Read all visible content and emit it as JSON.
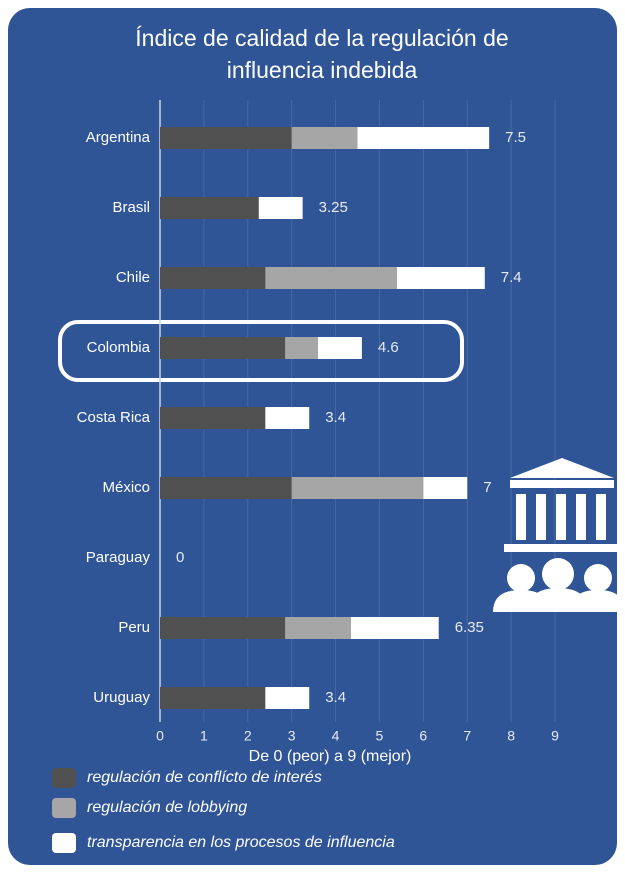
{
  "chart_data": {
    "type": "stacked-barh",
    "title": [
      "Índice de calidad de la regulación de",
      "influencia indebida"
    ],
    "xlabel": "De 0 (peor) a 9 (mejor)",
    "categories": [
      "Argentina",
      "Brasil",
      "Chile",
      "Colombia",
      "Costa Rica",
      "México",
      "Paraguay",
      "Peru",
      "Uruguay"
    ],
    "series": [
      {
        "name": "regulación de conflícto de interés",
        "color": "#505050",
        "values": [
          3,
          2.25,
          2.4,
          2.85,
          2.4,
          3,
          0,
          2.85,
          2.4
        ]
      },
      {
        "name": "regulación de lobbying",
        "color": "#a6a6a6",
        "values": [
          1.5,
          0,
          3,
          0.75,
          0,
          3,
          0,
          1.5,
          0
        ]
      },
      {
        "name": "transparencia en los procesos de influencia",
        "color": "#ffffff",
        "values": [
          3,
          1,
          2,
          1,
          1,
          1,
          0,
          2,
          1
        ]
      }
    ],
    "totals": [
      7.5,
      3.25,
      7.4,
      4.6,
      3.4,
      7,
      0,
      6.35,
      3.4
    ],
    "xlim": [
      0,
      9
    ],
    "xticks": [
      0,
      1,
      2,
      3,
      4,
      5,
      6,
      7,
      8,
      9
    ],
    "grid": true
  }
}
